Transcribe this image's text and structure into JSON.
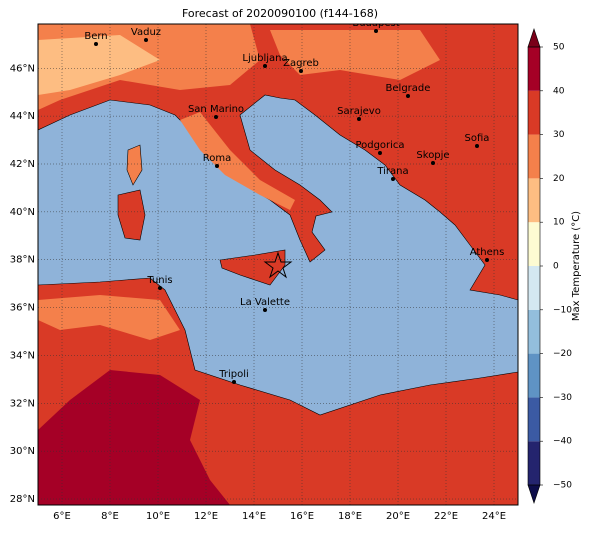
{
  "map": {
    "title": "Forecast of 2020090100 (f144-168)",
    "xlim": [
      5,
      25
    ],
    "ylim": [
      27.75,
      47.85
    ],
    "xticks": [
      {
        "value": 6,
        "label": "6°E"
      },
      {
        "value": 8,
        "label": "8°E"
      },
      {
        "value": 10,
        "label": "10°E"
      },
      {
        "value": 12,
        "label": "12°E"
      },
      {
        "value": 14,
        "label": "14°E"
      },
      {
        "value": 16,
        "label": "16°E"
      },
      {
        "value": 18,
        "label": "18°E"
      },
      {
        "value": 20,
        "label": "20°E"
      },
      {
        "value": 22,
        "label": "22°E"
      },
      {
        "value": 24,
        "label": "24°E"
      }
    ],
    "yticks": [
      {
        "value": 28,
        "label": "28°N"
      },
      {
        "value": 30,
        "label": "30°N"
      },
      {
        "value": 32,
        "label": "32°N"
      },
      {
        "value": 34,
        "label": "34°N"
      },
      {
        "value": 36,
        "label": "36°N"
      },
      {
        "value": 38,
        "label": "38°N"
      },
      {
        "value": 40,
        "label": "40°N"
      },
      {
        "value": 42,
        "label": "42°N"
      },
      {
        "value": 44,
        "label": "44°N"
      },
      {
        "value": 46,
        "label": "46°N"
      }
    ],
    "cities": [
      "Bern",
      "Vaduz",
      "Budapest",
      "Ljubljana",
      "Zagreb",
      "Belgrade",
      "San Marino",
      "Sarajevo",
      "Sofia",
      "Podgorica",
      "Skopje",
      "Roma",
      "Tirana",
      "Athens",
      "Tunis",
      "La Valette",
      "Tripoli"
    ],
    "colorbar": {
      "label": "Max Temperature (°C)",
      "lim": [
        -50,
        50
      ],
      "ticks": [
        {
          "value": -50,
          "label": "−50"
        },
        {
          "value": -40,
          "label": "−40"
        },
        {
          "value": -30,
          "label": "−30"
        },
        {
          "value": -20,
          "label": "−20"
        },
        {
          "value": -10,
          "label": "−10"
        },
        0,
        10,
        20,
        30,
        40,
        50
      ],
      "colors": [
        "#24246e",
        "#3b5aa3",
        "#5f93c4",
        "#93bedc",
        "#d4e8f1",
        "#fdfbd2",
        "#fdbd82",
        "#f4804b",
        "#d93a26",
        "#a50026"
      ],
      "under": "#0d0d4a",
      "over": "#7a0019"
    }
  }
}
